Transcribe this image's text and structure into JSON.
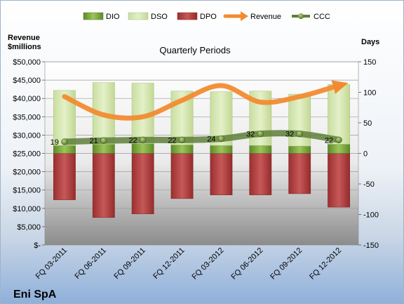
{
  "company": "Eni SpA",
  "colors": {
    "dio": "#6f9a2f",
    "dso": "#d7e8b0",
    "dpo": "#b13a3a",
    "revenue": "#f28b30",
    "ccc": "#5f7f3a"
  },
  "chart_data": {
    "type": "bar",
    "title": "Quarterly Periods",
    "ylabel_left": "Revenue $millions",
    "ylabel_right": "Days",
    "left_axis": {
      "min": 0,
      "max": 50000,
      "step": 5000,
      "ticks": [
        "$-",
        "$5,000",
        "$10,000",
        "$15,000",
        "$20,000",
        "$25,000",
        "$30,000",
        "$35,000",
        "$40,000",
        "$45,000",
        "$50,000"
      ]
    },
    "right_axis": {
      "min": -150,
      "max": 150,
      "step": 50,
      "ticks": [
        "-150",
        "-100",
        "-50",
        "0",
        "50",
        "100",
        "150"
      ]
    },
    "grid": true,
    "legend": {
      "placement": "top",
      "entries": [
        "DIO",
        "DSO",
        "DPO",
        "Revenue",
        "CCC"
      ]
    },
    "categories": [
      "FQ 03-2011",
      "FQ 06-2011",
      "FQ 09-2011",
      "FQ 12-2011",
      "FQ 03-2012",
      "FQ 06-2012",
      "FQ 09-2012",
      "FQ 12-2012"
    ],
    "series": [
      {
        "name": "DIO",
        "axis": "right",
        "kind": "stacked-bar",
        "values": [
          13,
          15,
          16,
          14,
          13,
          13,
          12,
          15
        ]
      },
      {
        "name": "DSO",
        "axis": "right",
        "kind": "stacked-bar",
        "values": [
          90,
          101,
          99,
          88,
          88,
          89,
          85,
          98
        ]
      },
      {
        "name": "DPO",
        "axis": "right",
        "kind": "negative-bar",
        "values": [
          -76,
          -105,
          -99,
          -74,
          -68,
          -68,
          -66,
          -88
        ]
      },
      {
        "name": "Revenue",
        "axis": "left",
        "kind": "line",
        "values": [
          40500,
          35500,
          35000,
          39500,
          43500,
          39000,
          40500,
          43500
        ]
      },
      {
        "name": "CCC",
        "axis": "right",
        "kind": "line",
        "values": [
          19,
          21,
          22,
          22,
          24,
          32,
          32,
          22
        ]
      }
    ]
  }
}
